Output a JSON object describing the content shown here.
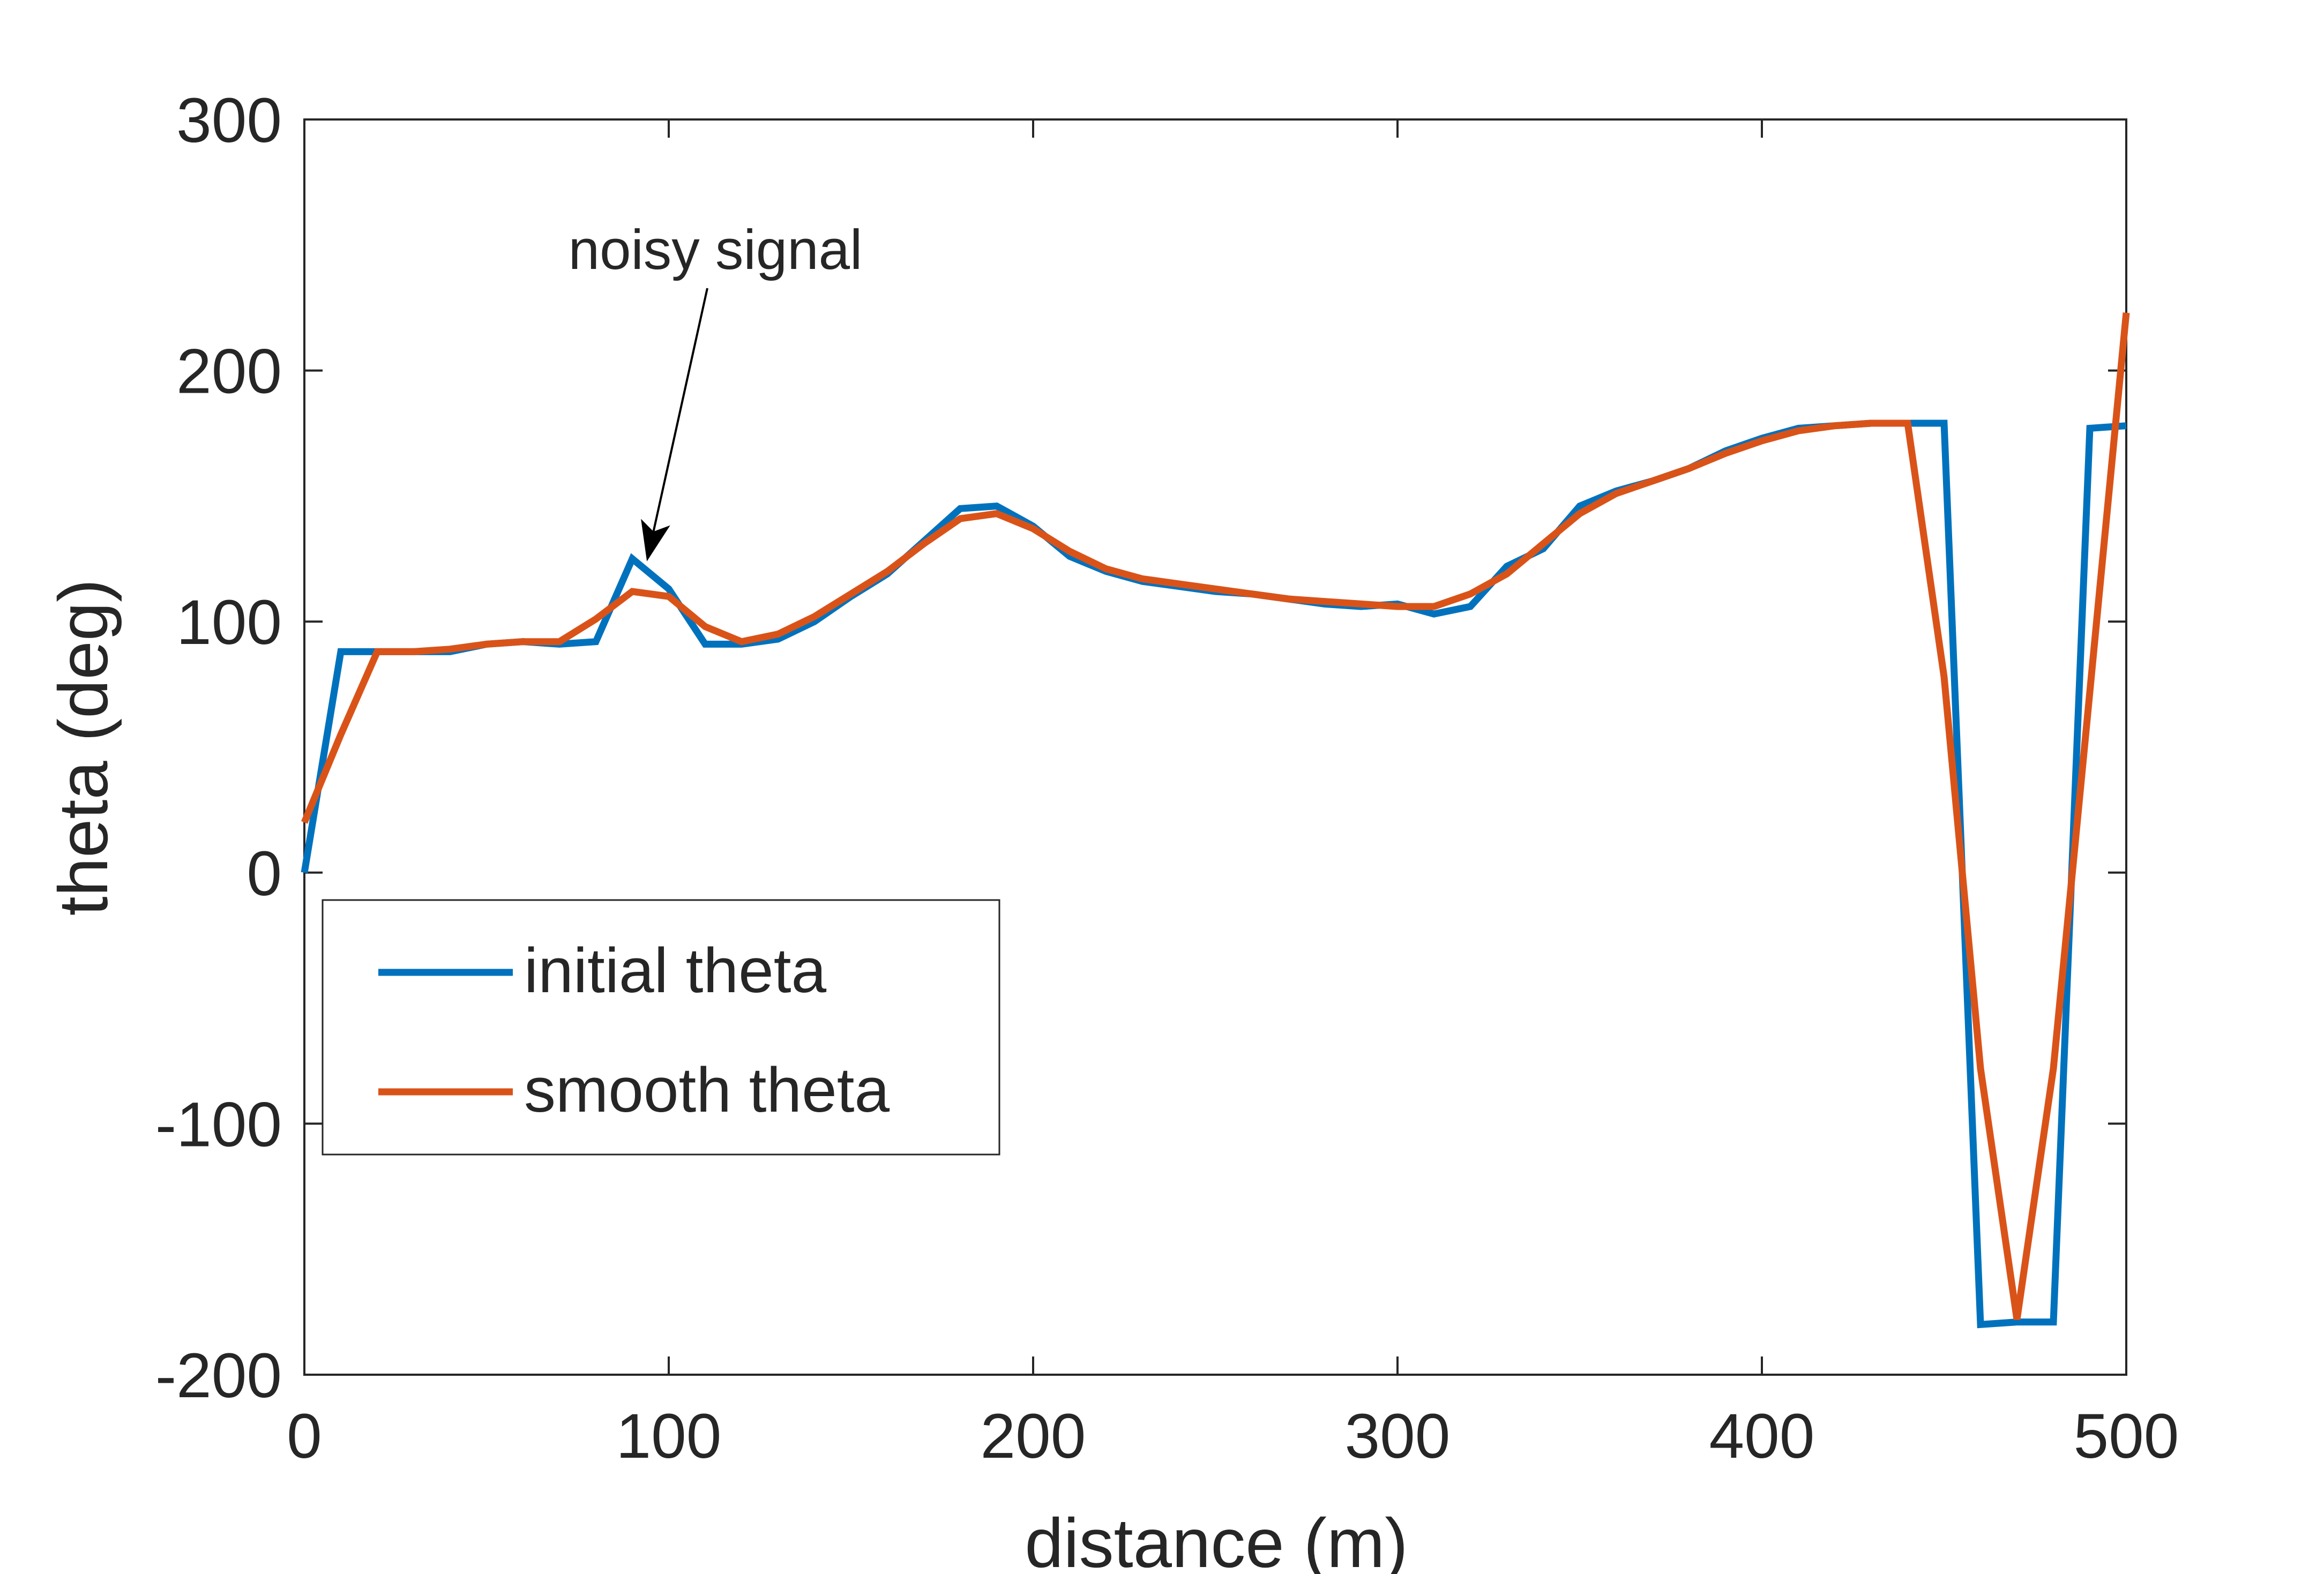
{
  "chart_data": {
    "type": "line",
    "title": "",
    "xlabel": "distance (m)",
    "ylabel": "theta (deg)",
    "xlim": [
      0,
      500
    ],
    "ylim": [
      -200,
      300
    ],
    "xticks": [
      0,
      100,
      200,
      300,
      400,
      500
    ],
    "yticks": [
      -200,
      -100,
      0,
      100,
      200,
      300
    ],
    "grid": false,
    "legend_position": "lower-left",
    "series": [
      {
        "name": "initial theta",
        "color": "#0072BD",
        "x": [
          0,
          10,
          20,
          30,
          40,
          50,
          60,
          70,
          80,
          90,
          100,
          110,
          120,
          130,
          140,
          150,
          160,
          170,
          180,
          190,
          200,
          210,
          220,
          230,
          240,
          250,
          260,
          270,
          280,
          290,
          300,
          310,
          320,
          330,
          340,
          350,
          360,
          370,
          380,
          390,
          400,
          410,
          420,
          430,
          440,
          450,
          460,
          470,
          480,
          490,
          500
        ],
        "y": [
          0,
          88,
          88,
          88,
          88,
          91,
          92,
          91,
          92,
          125,
          113,
          91,
          91,
          93,
          100,
          110,
          119,
          132,
          145,
          146,
          138,
          126,
          120,
          116,
          114,
          112,
          111,
          109,
          107,
          106,
          107,
          103,
          106,
          122,
          129,
          146,
          152,
          156,
          161,
          168,
          173,
          177,
          178,
          179,
          179,
          179,
          -180,
          -179,
          -179,
          177,
          178
        ]
      },
      {
        "name": "smooth theta",
        "color": "#D95319",
        "x": [
          0,
          10,
          20,
          30,
          40,
          50,
          60,
          70,
          80,
          90,
          100,
          110,
          120,
          130,
          140,
          150,
          160,
          170,
          180,
          190,
          200,
          210,
          220,
          230,
          240,
          250,
          260,
          270,
          280,
          290,
          300,
          310,
          320,
          330,
          340,
          350,
          360,
          370,
          380,
          390,
          400,
          410,
          420,
          430,
          440,
          450,
          460,
          470,
          480,
          490,
          500
        ],
        "y": [
          20,
          55,
          88,
          88,
          89,
          91,
          92,
          92,
          101,
          112,
          110,
          98,
          92,
          95,
          102,
          111,
          120,
          131,
          141,
          143,
          137,
          128,
          121,
          117,
          115,
          113,
          111,
          109,
          108,
          107,
          106,
          106,
          111,
          119,
          131,
          143,
          151,
          156,
          161,
          167,
          172,
          176,
          178,
          179,
          179,
          78,
          -78,
          -178,
          -78,
          72,
          223
        ]
      }
    ],
    "annotations": [
      {
        "text": "noisy signal",
        "arrow_to": [
          94,
          124
        ]
      }
    ]
  }
}
